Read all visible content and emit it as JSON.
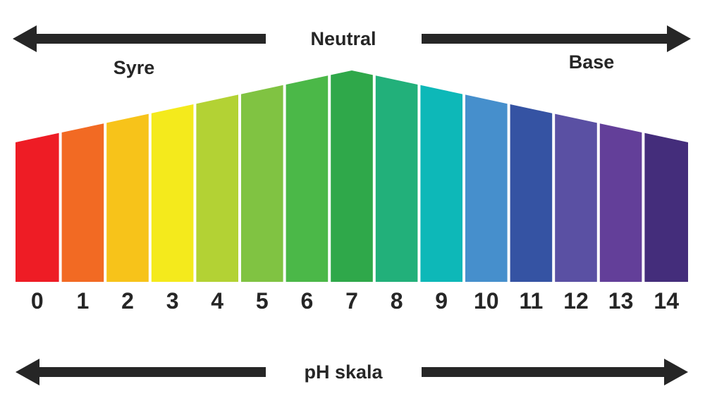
{
  "header": {
    "center_label": "Neutral",
    "left_label": "Syre",
    "right_label": "Base"
  },
  "footer": {
    "label": "pH skala"
  },
  "colors": {
    "text": "#262626",
    "arrow": "#262626",
    "background": "#ffffff"
  },
  "scale": {
    "peak_value": "7",
    "values": [
      {
        "label": "0",
        "color": "#ee1c25"
      },
      {
        "label": "1",
        "color": "#f26a23"
      },
      {
        "label": "2",
        "color": "#f7c31a"
      },
      {
        "label": "3",
        "color": "#f4ea1c"
      },
      {
        "label": "4",
        "color": "#b3d234"
      },
      {
        "label": "5",
        "color": "#80c342"
      },
      {
        "label": "6",
        "color": "#4bb848"
      },
      {
        "label": "7",
        "color": "#2fa84a"
      },
      {
        "label": "8",
        "color": "#22b07a"
      },
      {
        "label": "9",
        "color": "#0db8b8"
      },
      {
        "label": "10",
        "color": "#468fcc"
      },
      {
        "label": "11",
        "color": "#3553a3"
      },
      {
        "label": "12",
        "color": "#5a50a3"
      },
      {
        "label": "13",
        "color": "#633f99"
      },
      {
        "label": "14",
        "color": "#442d7b"
      }
    ]
  }
}
